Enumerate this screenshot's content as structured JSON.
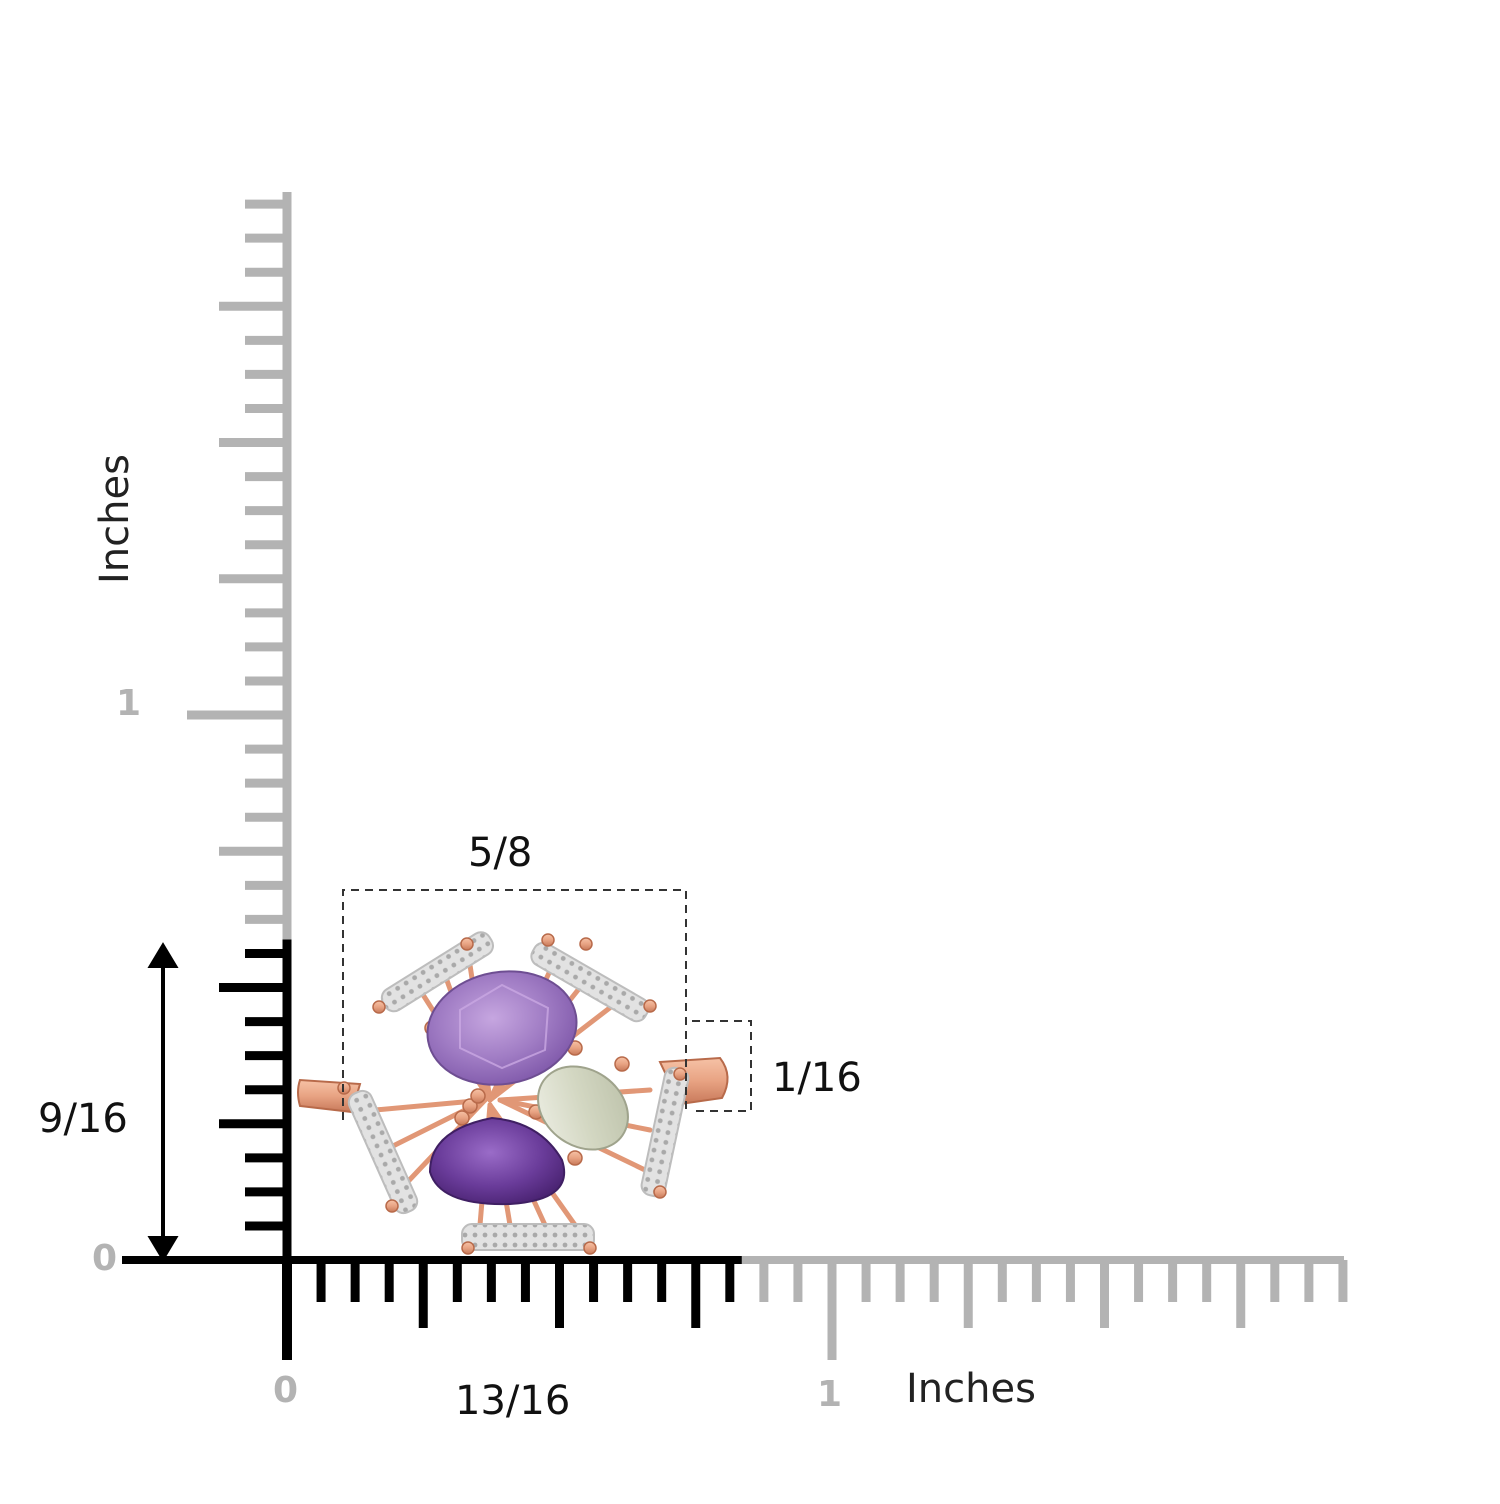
{
  "diagram": {
    "subject": "gemstone cocktail ring",
    "dimensions": {
      "width_label": "5/8",
      "height_label": "9/16",
      "band_label": "1/16",
      "length_label": "13/16"
    },
    "axes": {
      "x_title": "Inches",
      "y_title": "Inches",
      "x_tick_zero": "0",
      "x_tick_one": "1",
      "y_tick_zero": "0",
      "y_tick_one": "1"
    },
    "colors": {
      "ruler_gray": "#b3b3b3",
      "ruler_black": "#000000",
      "rose_gold": "#e8a383",
      "amethyst_light": "#a07cc4",
      "amethyst_dark": "#6a3c9a",
      "prasiolite": "#d9dccb",
      "silver": "#d8d8d8"
    }
  }
}
